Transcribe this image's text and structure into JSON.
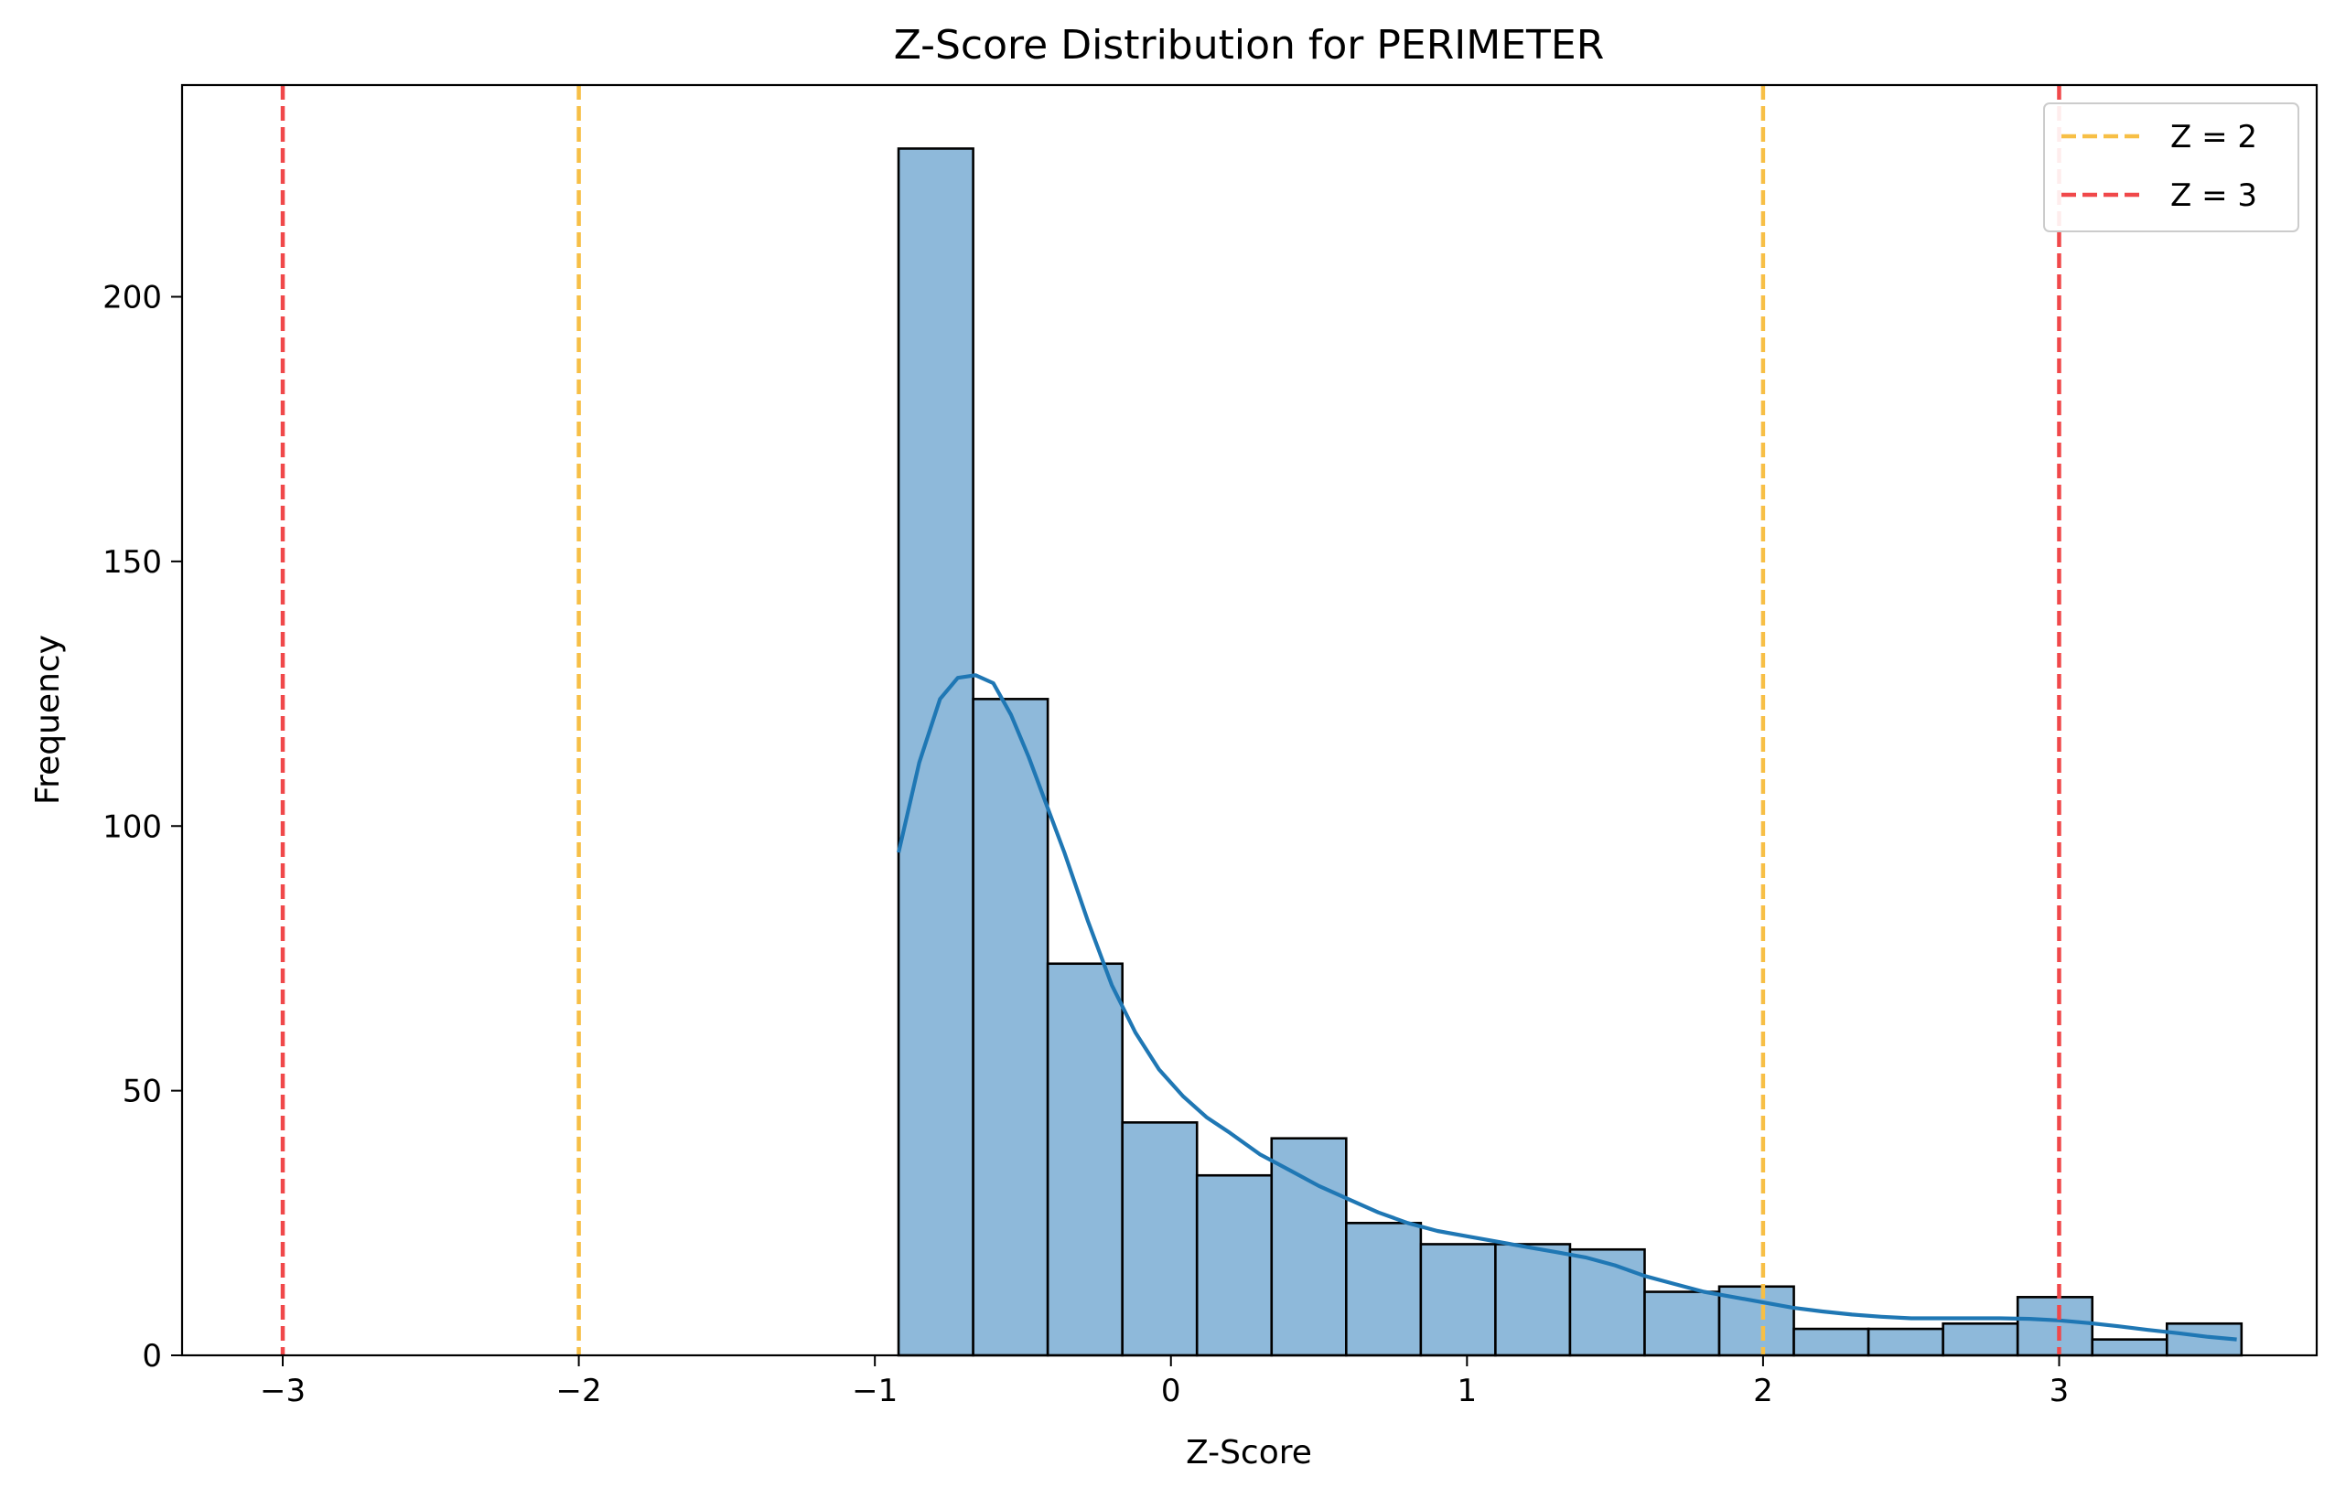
{
  "chart_data": {
    "type": "bar",
    "title": "Z-Score Distribution for PERIMETER",
    "xlabel": "Z-Score",
    "ylabel": "Frequency",
    "xlim": [
      -3.34,
      3.87
    ],
    "ylim": [
      0,
      240
    ],
    "xticks": [
      -3,
      -2,
      -1,
      0,
      1,
      2,
      3
    ],
    "xtick_labels": [
      "−3",
      "−2",
      "−1",
      "0",
      "1",
      "2",
      "3"
    ],
    "yticks": [
      0,
      50,
      100,
      150,
      200
    ],
    "ytick_labels": [
      "0",
      "50",
      "100",
      "150",
      "200"
    ],
    "grid": false,
    "bins": {
      "edges": [
        -0.92,
        -0.668,
        -0.416,
        -0.164,
        0.088,
        0.34,
        0.592,
        0.844,
        1.096,
        1.348,
        1.6,
        1.852,
        2.104,
        2.356,
        2.608,
        2.86,
        3.112,
        3.364,
        3.616
      ],
      "counts": [
        228,
        124,
        74,
        44,
        34,
        41,
        25,
        21,
        21,
        20,
        12,
        13,
        5,
        5,
        6,
        11,
        3,
        6
      ],
      "fill": "#8eb9da",
      "edge": "#000000"
    },
    "kde": {
      "color": "#1f77b4",
      "points": [
        [
          -0.92,
          95
        ],
        [
          -0.85,
          112
        ],
        [
          -0.78,
          124
        ],
        [
          -0.72,
          128
        ],
        [
          -0.66,
          128.5
        ],
        [
          -0.6,
          127
        ],
        [
          -0.54,
          121
        ],
        [
          -0.48,
          113
        ],
        [
          -0.42,
          104
        ],
        [
          -0.36,
          95
        ],
        [
          -0.28,
          82
        ],
        [
          -0.2,
          70
        ],
        [
          -0.12,
          61
        ],
        [
          -0.04,
          54
        ],
        [
          0.04,
          49
        ],
        [
          0.12,
          45
        ],
        [
          0.2,
          42
        ],
        [
          0.3,
          38
        ],
        [
          0.4,
          35
        ],
        [
          0.5,
          32
        ],
        [
          0.6,
          29.5
        ],
        [
          0.7,
          27
        ],
        [
          0.8,
          25
        ],
        [
          0.9,
          23.5
        ],
        [
          1.0,
          22.5
        ],
        [
          1.1,
          21.5
        ],
        [
          1.2,
          20.5
        ],
        [
          1.3,
          19.5
        ],
        [
          1.4,
          18.5
        ],
        [
          1.5,
          17
        ],
        [
          1.6,
          15
        ],
        [
          1.7,
          13.5
        ],
        [
          1.8,
          12
        ],
        [
          1.9,
          11
        ],
        [
          2.0,
          10
        ],
        [
          2.1,
          9
        ],
        [
          2.2,
          8.3
        ],
        [
          2.3,
          7.7
        ],
        [
          2.4,
          7.3
        ],
        [
          2.5,
          7
        ],
        [
          2.6,
          7
        ],
        [
          2.7,
          7
        ],
        [
          2.8,
          7
        ],
        [
          2.9,
          6.9
        ],
        [
          3.0,
          6.6
        ],
        [
          3.1,
          6.1
        ],
        [
          3.2,
          5.5
        ],
        [
          3.3,
          4.8
        ],
        [
          3.4,
          4.2
        ],
        [
          3.5,
          3.5
        ],
        [
          3.6,
          3
        ]
      ]
    },
    "reference_lines": [
      {
        "x": -3,
        "color": "#f0484a"
      },
      {
        "x": -2,
        "color": "#f7bf46"
      },
      {
        "x": 2,
        "color": "#f7bf46"
      },
      {
        "x": 3,
        "color": "#f0484a"
      }
    ],
    "legend": {
      "position": "top-right",
      "entries": [
        {
          "label": "Z = 2",
          "color": "#f7bf46"
        },
        {
          "label": "Z = 3",
          "color": "#f0484a"
        }
      ]
    }
  }
}
